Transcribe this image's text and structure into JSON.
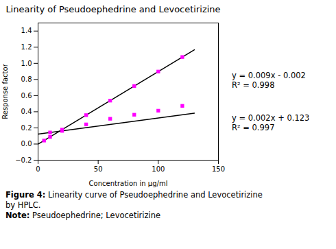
{
  "chart_data": {
    "type": "scatter",
    "title": "Linearity of Pseudoephedrine and Levocetirizine",
    "xlabel": "Concentration in µg/ml",
    "ylabel": "Response factor",
    "xlim": [
      0,
      150
    ],
    "xticks": [
      0,
      50,
      100,
      150
    ],
    "ylim": [
      -0.2,
      1.5
    ],
    "yticks": [
      {
        "value": -0.2,
        "label": "−0.2"
      },
      {
        "value": 0,
        "label": "0.0"
      },
      0.2,
      0.4,
      0.6,
      0.8,
      {
        "value": 1.0,
        "label": "1.0"
      },
      1.2,
      1.4
    ],
    "grid": false,
    "series": [
      {
        "type": "line",
        "color": "#000000",
        "x": [
          0,
          130
        ],
        "values": [
          -0.002,
          1.168
        ]
      },
      {
        "type": "scatter",
        "marker": "square",
        "color": "#FF00FF",
        "x": [
          5,
          10,
          20,
          40,
          60,
          80,
          100,
          120
        ],
        "values": [
          0.043,
          0.088,
          0.178,
          0.358,
          0.538,
          0.718,
          0.898,
          1.078
        ]
      },
      {
        "type": "line",
        "color": "#000000",
        "x": [
          0,
          130
        ],
        "values": [
          0.123,
          0.383
        ]
      },
      {
        "type": "scatter",
        "marker": "square",
        "color": "#FF00FF",
        "x": [
          10,
          20,
          40,
          60,
          80,
          100,
          120
        ],
        "values": [
          0.143,
          0.163,
          0.243,
          0.313,
          0.363,
          0.413,
          0.473
        ]
      }
    ],
    "annotations": [
      [
        "y = 0.009x - 0.002",
        "R² = 0.998"
      ],
      [
        "y = 0.002x + 0.123",
        "R² = 0.997"
      ]
    ],
    "caption": [
      "Figure 4: Linearity curve of Pseudoephedrine and Levocetirizine",
      "by HPLC.",
      "Note: Pseudoephedrine; Levocetirizine"
    ]
  }
}
